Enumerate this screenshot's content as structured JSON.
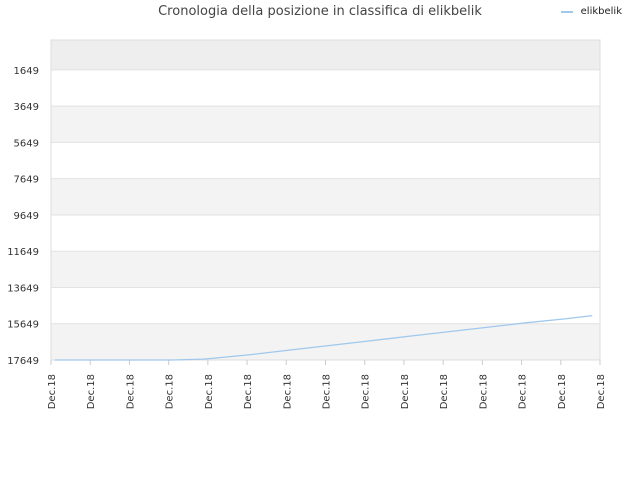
{
  "chart_data": {
    "type": "line",
    "title": "Cronologia della posizione in classifica di elikbelik",
    "xlabel": "",
    "ylabel": "",
    "y_reversed": true,
    "ylim": [
      17649,
      0
    ],
    "y_ticks": [
      1649,
      3649,
      5649,
      7649,
      9649,
      11649,
      13649,
      15649,
      17649
    ],
    "y_tick_labels": [
      "1649",
      "3649",
      "5649",
      "7649",
      "9649",
      "11649",
      "13649",
      "15649",
      "17649"
    ],
    "x_tick_labels": [
      "Dec.18",
      "Dec.18",
      "Dec.18",
      "Dec.18",
      "Dec.18",
      "Dec.18",
      "Dec.18",
      "Dec.18",
      "Dec.18",
      "Dec.18",
      "Dec.18",
      "Dec.18",
      "Dec.18",
      "Dec.18",
      "Dec.18"
    ],
    "grid": true,
    "legend_position": "top-right",
    "series": [
      {
        "name": "elikbelik",
        "color": "#a0c8ec",
        "points": [
          [
            0,
            17649
          ],
          [
            1,
            17649
          ],
          [
            2,
            17649
          ],
          [
            3,
            17649
          ],
          [
            3.8,
            17600
          ],
          [
            5,
            17350
          ],
          [
            6,
            17100
          ],
          [
            7,
            16850
          ],
          [
            8,
            16600
          ],
          [
            9,
            16350
          ],
          [
            10,
            16100
          ],
          [
            11,
            15850
          ],
          [
            12,
            15600
          ],
          [
            13,
            15380
          ],
          [
            13.7,
            15200
          ]
        ]
      }
    ]
  }
}
